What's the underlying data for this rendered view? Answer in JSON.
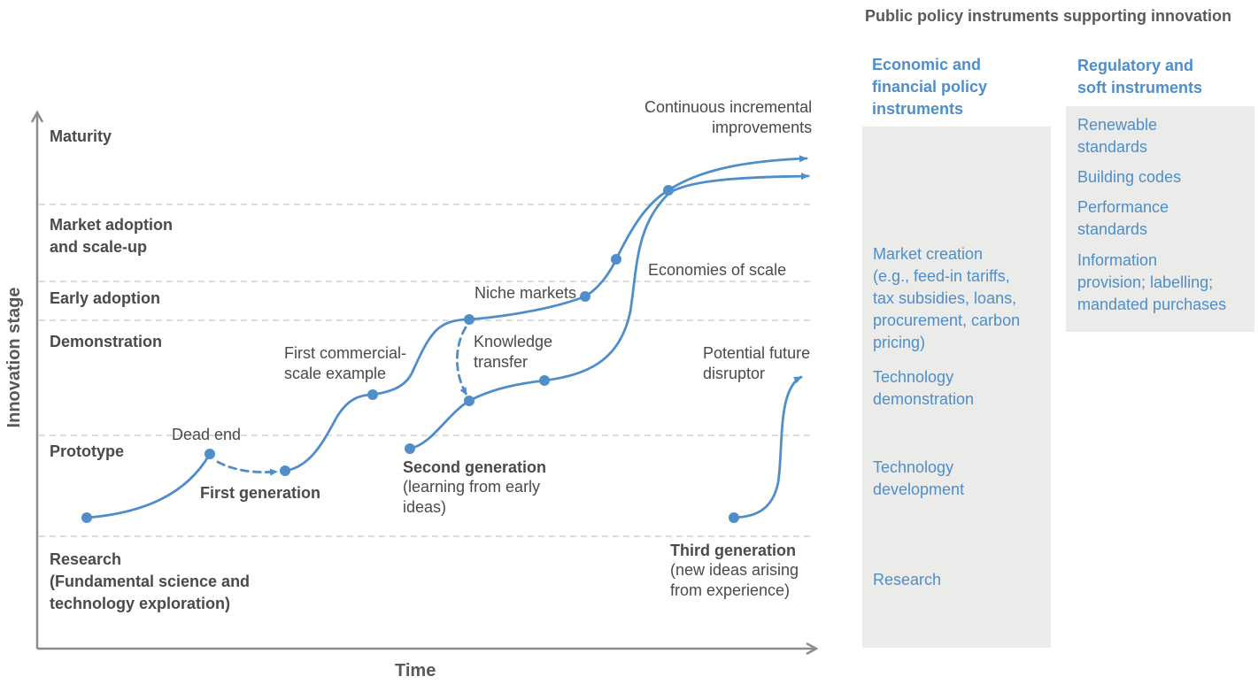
{
  "diagram": {
    "axis_y_label": "Innovation stage",
    "axis_x_label": "Time",
    "stages": [
      "Maturity",
      "Market adoption\nand scale-up",
      "Early adoption",
      "Demonstration",
      "Prototype",
      "Research\n(Fundamental science and\ntechnology exploration)"
    ],
    "annotations": {
      "dead_end": "Dead end",
      "first_generation": "First generation",
      "first_commercial": "First commercial-\nscale example",
      "niche_markets": "Niche markets",
      "knowledge_transfer": "Knowledge\ntransfer",
      "economies_of_scale": "Economies of scale",
      "continuous": "Continuous incremental\nimprovements",
      "second_generation": "Second generation",
      "second_generation_note": "(learning from early\nideas)",
      "potential_disruptor": "Potential future\ndisruptor",
      "third_generation": "Third generation",
      "third_generation_note": "(new ideas arising\nfrom experience)"
    },
    "colors": {
      "curve": "#4f8ec9",
      "axis": "#8c8c8c",
      "gridline": "#c8c8c8",
      "box": "#ebebea"
    }
  },
  "policy_panel": {
    "title": "Public policy instruments supporting innovation",
    "economic": {
      "heading": "Economic and\nfinancial policy\ninstruments",
      "items": [
        "Market creation\n(e.g., feed-in tariffs,\ntax subsidies, loans,\nprocurement, carbon\npricing)",
        "Technology\ndemonstration",
        "Technology\ndevelopment",
        "Research"
      ]
    },
    "regulatory": {
      "heading": "Regulatory and\nsoft instruments",
      "items": [
        "Renewable\nstandards",
        "Building codes",
        "Performance\nstandards",
        "Information\nprovision; labelling;\nmandated purchases"
      ]
    }
  }
}
